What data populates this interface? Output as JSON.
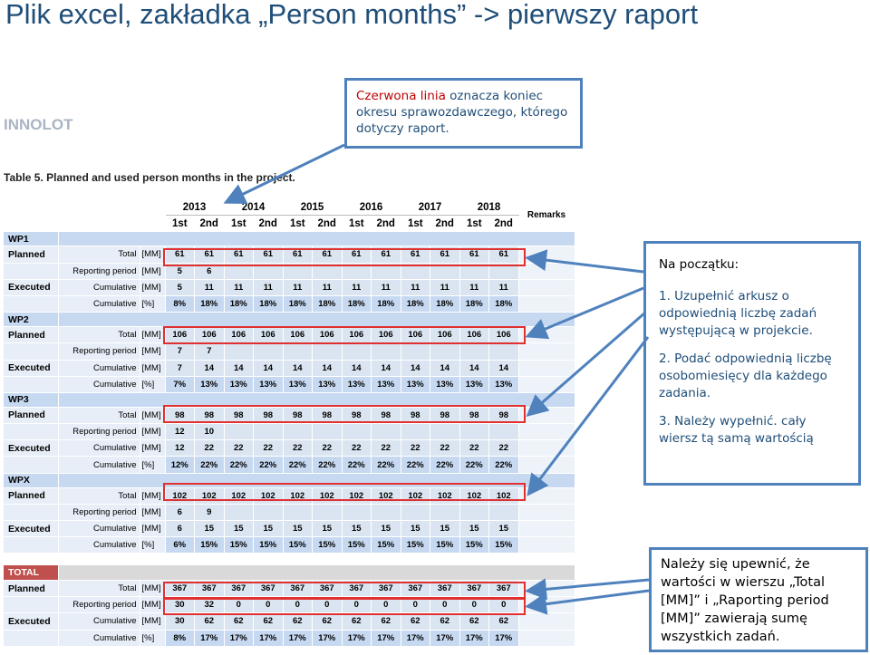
{
  "slide": {
    "title": "Plik excel, zakładka „Person months” -> pierwszy raport",
    "logo": "INNOLOT"
  },
  "notes": {
    "red_line": {
      "highlight": "Czerwona linia",
      "text": "oznacza koniec okresu sprawozdawczego, którego dotyczy raport."
    },
    "steps": {
      "header": "Na początku:",
      "items": [
        "1.  Uzupełnić arkusz o odpowiednią liczbę zadań występującą w projekcie.",
        "2.  Podać odpowiednią liczbę osobomiesięcy dla każdego zadania.",
        "3.  Należy wypełnić. cały wiersz tą samą wartością"
      ]
    },
    "bottom": "Należy się upewnić, że wartości w wierszu „Total [MM]” i „Raporting period [MM]” zawierają sumę wszystkich zadań."
  },
  "table": {
    "caption": "Table 5. Planned and used person months in the project.",
    "years": [
      "2013",
      "2014",
      "2015",
      "2016",
      "2017",
      "2018"
    ],
    "halves": [
      "1st",
      "2nd",
      "1st",
      "2nd",
      "1st",
      "2nd",
      "1st",
      "2nd",
      "1st",
      "2nd",
      "1st",
      "2nd"
    ],
    "remarks": "Remarks",
    "wps": [
      {
        "name": "WP1",
        "total": [
          "61",
          "61",
          "61",
          "61",
          "61",
          "61",
          "61",
          "61",
          "61",
          "61",
          "61",
          "61"
        ],
        "reporting": [
          "5",
          "6",
          "",
          "",
          "",
          "",
          "",
          "",
          "",
          "",
          "",
          ""
        ],
        "cumulative": [
          "5",
          "11",
          "11",
          "11",
          "11",
          "11",
          "11",
          "11",
          "11",
          "11",
          "11",
          "11"
        ],
        "percent": [
          "8%",
          "18%",
          "18%",
          "18%",
          "18%",
          "18%",
          "18%",
          "18%",
          "18%",
          "18%",
          "18%",
          "18%"
        ]
      },
      {
        "name": "WP2",
        "total": [
          "106",
          "106",
          "106",
          "106",
          "106",
          "106",
          "106",
          "106",
          "106",
          "106",
          "106",
          "106"
        ],
        "reporting": [
          "7",
          "7",
          "",
          "",
          "",
          "",
          "",
          "",
          "",
          "",
          "",
          ""
        ],
        "cumulative": [
          "7",
          "14",
          "14",
          "14",
          "14",
          "14",
          "14",
          "14",
          "14",
          "14",
          "14",
          "14"
        ],
        "percent": [
          "7%",
          "13%",
          "13%",
          "13%",
          "13%",
          "13%",
          "13%",
          "13%",
          "13%",
          "13%",
          "13%",
          "13%"
        ]
      },
      {
        "name": "WP3",
        "total": [
          "98",
          "98",
          "98",
          "98",
          "98",
          "98",
          "98",
          "98",
          "98",
          "98",
          "98",
          "98"
        ],
        "reporting": [
          "12",
          "10",
          "",
          "",
          "",
          "",
          "",
          "",
          "",
          "",
          "",
          ""
        ],
        "cumulative": [
          "12",
          "22",
          "22",
          "22",
          "22",
          "22",
          "22",
          "22",
          "22",
          "22",
          "22",
          "22"
        ],
        "percent": [
          "12%",
          "22%",
          "22%",
          "22%",
          "22%",
          "22%",
          "22%",
          "22%",
          "22%",
          "22%",
          "22%",
          "22%"
        ]
      },
      {
        "name": "WPX",
        "total": [
          "102",
          "102",
          "102",
          "102",
          "102",
          "102",
          "102",
          "102",
          "102",
          "102",
          "102",
          "102"
        ],
        "reporting": [
          "6",
          "9",
          "",
          "",
          "",
          "",
          "",
          "",
          "",
          "",
          "",
          ""
        ],
        "cumulative": [
          "6",
          "15",
          "15",
          "15",
          "15",
          "15",
          "15",
          "15",
          "15",
          "15",
          "15",
          "15"
        ],
        "percent": [
          "6%",
          "15%",
          "15%",
          "15%",
          "15%",
          "15%",
          "15%",
          "15%",
          "15%",
          "15%",
          "15%",
          "15%"
        ]
      }
    ],
    "total_block": {
      "name": "TOTAL",
      "total": [
        "367",
        "367",
        "367",
        "367",
        "367",
        "367",
        "367",
        "367",
        "367",
        "367",
        "367",
        "367"
      ],
      "reporting": [
        "30",
        "32",
        "0",
        "0",
        "0",
        "0",
        "0",
        "0",
        "0",
        "0",
        "0",
        "0"
      ],
      "cumulative": [
        "30",
        "62",
        "62",
        "62",
        "62",
        "62",
        "62",
        "62",
        "62",
        "62",
        "62",
        "62"
      ],
      "percent": [
        "8%",
        "17%",
        "17%",
        "17%",
        "17%",
        "17%",
        "17%",
        "17%",
        "17%",
        "17%",
        "17%",
        "17%"
      ]
    },
    "labels": {
      "planned": "Planned",
      "executed": "Executed",
      "total": "Total",
      "reporting": "Reporting period",
      "cumulative": "Cumulative",
      "mm": "[MM]",
      "pct": "[%]"
    }
  },
  "colors": {
    "title": "#1f4e79",
    "accent_box": "#4f81bd",
    "red_line": "#e03030",
    "arrow": "#4f81bd"
  }
}
